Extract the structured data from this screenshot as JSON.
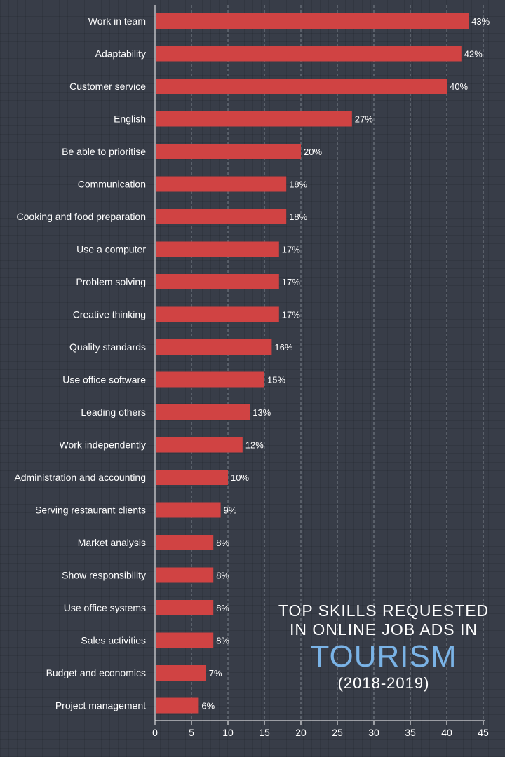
{
  "title": {
    "line1": "TOP SKILLS REQUESTED",
    "line2": "IN ONLINE JOB ADS IN",
    "highlight": "TOURISM",
    "years": "(2018-2019)"
  },
  "colors": {
    "background": "#383d48",
    "bar": "#d04343",
    "highlight": "#7ab3e6",
    "text": "#ffffff",
    "grid": "#9aa0aa"
  },
  "chart_data": {
    "type": "bar",
    "orientation": "horizontal",
    "categories": [
      "Work in team",
      "Adaptability",
      "Customer service",
      "English",
      "Be able to prioritise",
      "Communication",
      "Cooking and food preparation",
      "Use a computer",
      "Problem solving",
      "Creative thinking",
      "Quality standards",
      "Use office software",
      "Leading others",
      "Work independently",
      "Administration and accounting",
      "Serving restaurant clients",
      "Market analysis",
      "Show responsibility",
      "Use office systems",
      "Sales activities",
      "Budget and economics",
      "Project management"
    ],
    "values": [
      43,
      42,
      40,
      27,
      20,
      18,
      18,
      17,
      17,
      17,
      16,
      15,
      13,
      12,
      10,
      9,
      8,
      8,
      8,
      8,
      7,
      6
    ],
    "value_labels": [
      "43%",
      "42%",
      "40%",
      "27%",
      "20%",
      "18%",
      "18%",
      "17%",
      "17%",
      "17%",
      "16%",
      "15%",
      "13%",
      "12%",
      "10%",
      "9%",
      "8%",
      "8%",
      "8%",
      "8%",
      "7%",
      "6%"
    ],
    "xlim": [
      0,
      45
    ],
    "xticks": [
      0,
      5,
      10,
      15,
      20,
      25,
      30,
      35,
      40,
      45
    ],
    "xtick_labels": [
      "0",
      "5",
      "10",
      "15",
      "20",
      "25",
      "30",
      "35",
      "40",
      "45"
    ],
    "grid": "vertical dashed"
  }
}
